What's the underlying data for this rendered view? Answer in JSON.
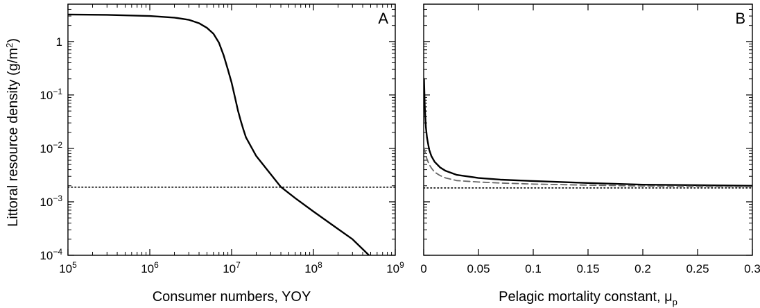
{
  "figure": {
    "ylabel_main": "Littoral resource density (g/m",
    "ylabel_sup": "2",
    "ylabel_end": ")"
  },
  "chart_data": [
    {
      "type": "line",
      "panel_label": "A",
      "xlabel": "Consumer numbers, YOY",
      "x_scale": "log",
      "y_scale": "log",
      "xlim": [
        100000,
        1000000000
      ],
      "ylim": [
        0.0001,
        5.0
      ],
      "x_ticks": [
        {
          "value": 100000,
          "base": "10",
          "exp": "5"
        },
        {
          "value": 1000000,
          "base": "10",
          "exp": "6"
        },
        {
          "value": 10000000,
          "base": "10",
          "exp": "7"
        },
        {
          "value": 100000000,
          "base": "10",
          "exp": "8"
        },
        {
          "value": 1000000000,
          "base": "10",
          "exp": "9"
        }
      ],
      "y_ticks": [
        {
          "value": 0.0001,
          "base": "10",
          "exp": "−4"
        },
        {
          "value": 0.001,
          "base": "10",
          "exp": "−3"
        },
        {
          "value": 0.01,
          "base": "10",
          "exp": "−2"
        },
        {
          "value": 0.1,
          "base": "10",
          "exp": "−1"
        },
        {
          "value": 1,
          "base": "1",
          "exp": ""
        }
      ],
      "grid": false,
      "series": [
        {
          "style": "solid",
          "x": [
            100000,
            300000,
            1000000,
            2000000,
            3000000,
            4000000,
            5000000,
            6000000,
            7000000,
            8000000,
            9000000,
            10000000,
            11000000,
            12000000,
            13000000,
            14000000,
            15000000,
            20000000,
            30000000,
            40000000,
            60000000,
            100000000,
            200000000,
            300000000,
            478000000
          ],
          "y": [
            3.2,
            3.15,
            3.0,
            2.8,
            2.55,
            2.2,
            1.8,
            1.4,
            0.95,
            0.55,
            0.3,
            0.17,
            0.09,
            0.05,
            0.032,
            0.022,
            0.016,
            0.0072,
            0.0033,
            0.0019,
            0.00117,
            0.00066,
            0.00031,
            0.0002,
            0.0001
          ]
        },
        {
          "style": "dotted",
          "x": [
            100000,
            1000000000
          ],
          "y": [
            0.00188,
            0.00188
          ]
        }
      ]
    },
    {
      "type": "line",
      "panel_label": "B",
      "xlabel": "Pelagic mortality constant, μ",
      "xlabel_sub": "p",
      "x_scale": "linear",
      "y_scale": "log",
      "xlim": [
        0,
        0.3
      ],
      "ylim": [
        0.0001,
        5.0
      ],
      "x_ticks": [
        {
          "value": 0,
          "label": "0"
        },
        {
          "value": 0.05,
          "label": "0.05"
        },
        {
          "value": 0.1,
          "label": "0.1"
        },
        {
          "value": 0.15,
          "label": "0.15"
        },
        {
          "value": 0.2,
          "label": "0.2"
        },
        {
          "value": 0.25,
          "label": "0.25"
        },
        {
          "value": 0.3,
          "label": "0.3"
        }
      ],
      "grid": false,
      "series": [
        {
          "style": "solid",
          "x": [
            0.0003,
            0.001,
            0.002,
            0.003,
            0.005,
            0.007,
            0.01,
            0.015,
            0.02,
            0.03,
            0.05,
            0.07,
            0.1,
            0.15,
            0.2,
            0.25,
            0.3
          ],
          "y": [
            0.2,
            0.06,
            0.025,
            0.016,
            0.0095,
            0.0072,
            0.0056,
            0.0044,
            0.0038,
            0.0032,
            0.0028,
            0.0026,
            0.00245,
            0.00225,
            0.0021,
            0.00205,
            0.002
          ]
        },
        {
          "style": "dashed",
          "x": [
            0.0003,
            0.001,
            0.002,
            0.003,
            0.005,
            0.007,
            0.01,
            0.015,
            0.02,
            0.03,
            0.05,
            0.07,
            0.1,
            0.15,
            0.2,
            0.25,
            0.3
          ],
          "y": [
            0.0105,
            0.009,
            0.0075,
            0.0063,
            0.005,
            0.0043,
            0.0036,
            0.0031,
            0.0028,
            0.0025,
            0.00235,
            0.00225,
            0.00215,
            0.00205,
            0.00198,
            0.00195,
            0.00192
          ]
        },
        {
          "style": "dotted",
          "x": [
            0,
            0.3
          ],
          "y": [
            0.00182,
            0.00182
          ]
        }
      ]
    }
  ]
}
